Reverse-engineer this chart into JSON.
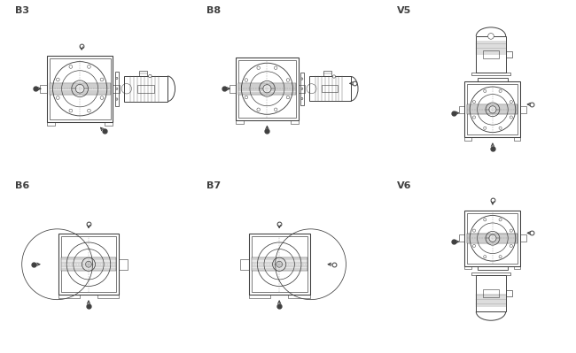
{
  "bg_color": "#ffffff",
  "line_color": "#404040",
  "lw": 0.7,
  "panels": [
    {
      "label": "B3",
      "row": 0,
      "col": 0
    },
    {
      "label": "B8",
      "row": 0,
      "col": 1
    },
    {
      "label": "V5",
      "row": 0,
      "col": 2
    },
    {
      "label": "B6",
      "row": 1,
      "col": 0
    },
    {
      "label": "B7",
      "row": 1,
      "col": 1
    },
    {
      "label": "V6",
      "row": 1,
      "col": 2
    }
  ]
}
